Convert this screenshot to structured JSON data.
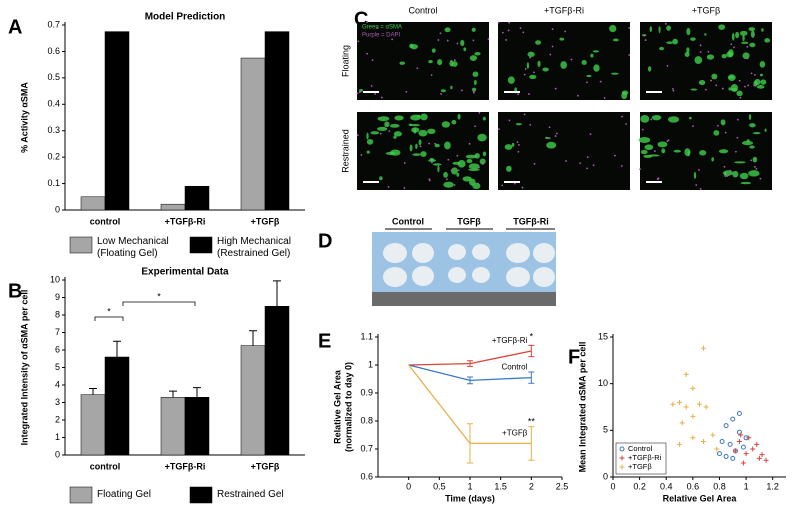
{
  "chart_data": [
    {
      "type": "bar",
      "panel": "A",
      "title": "Model Prediction",
      "ylabel": "% Activity αSMA",
      "categories": [
        "control",
        "+TGFβ-Ri",
        "+TGFβ"
      ],
      "series": [
        {
          "name": "Low Mechanical (Floating Gel)",
          "color": "#a6a6a6",
          "values": [
            0.05,
            0.022,
            0.575
          ]
        },
        {
          "name": "High Mechanical (Restrained Gel)",
          "color": "#000000",
          "values": [
            0.675,
            0.09,
            0.675
          ]
        }
      ],
      "ylim": [
        0,
        0.7
      ],
      "yticks": [
        0,
        0.1,
        0.2,
        0.3,
        0.4,
        0.5,
        0.6,
        0.7
      ]
    },
    {
      "type": "bar",
      "panel": "B",
      "title": "Experimental Data",
      "ylabel": "Integrated Intensity of αSMA per cell",
      "categories": [
        "control",
        "+TGFβ-Ri",
        "+TGFβ"
      ],
      "series": [
        {
          "name": "Floating Gel",
          "color": "#a6a6a6",
          "values": [
            3.45,
            3.3,
            6.25
          ],
          "errors": [
            0.35,
            0.35,
            0.85
          ]
        },
        {
          "name": "Restrained Gel",
          "color": "#000000",
          "values": [
            5.6,
            3.3,
            8.5
          ],
          "errors": [
            0.9,
            0.55,
            1.45
          ]
        }
      ],
      "annotations": [
        "*",
        "*"
      ],
      "ylim": [
        0,
        10
      ],
      "yticks": [
        0,
        1,
        2,
        3,
        4,
        5,
        6,
        7,
        8,
        9,
        10
      ]
    },
    {
      "type": "line",
      "panel": "E",
      "xlabel": "Time (days)",
      "ylabel": [
        "Relative Gel Area",
        "(normalized to day 0)"
      ],
      "x": [
        0,
        1,
        2
      ],
      "series": [
        {
          "name": "+TGFβ-Ri",
          "color": "#d9453a",
          "values": [
            1,
            1.005,
            1.05
          ],
          "errors": [
            0,
            0.01,
            0.02
          ]
        },
        {
          "name": "Control",
          "color": "#3a78c2",
          "values": [
            1,
            0.945,
            0.955
          ],
          "errors": [
            0,
            0.012,
            0.02
          ]
        },
        {
          "name": "+TGFβ",
          "color": "#e8b04a",
          "values": [
            1,
            0.72,
            0.72
          ],
          "errors": [
            0,
            0.07,
            0.06
          ]
        }
      ],
      "annotations": [
        "*",
        "**"
      ],
      "xlim": [
        -0.5,
        2.5
      ],
      "xticks": [
        0,
        0.5,
        1,
        1.5,
        2,
        2.5
      ],
      "ylim": [
        0.6,
        1.1
      ],
      "yticks": [
        0.6,
        0.7,
        0.8,
        0.9,
        1,
        1.1
      ]
    },
    {
      "type": "scatter",
      "panel": "F",
      "xlabel": "Relative Gel Area",
      "ylabel": "Mean Integrated αSMA per cell",
      "series": [
        {
          "name": "Control",
          "color": "#3a78c2",
          "marker": "o",
          "x": [
            0.85,
            0.9,
            0.95,
            0.88,
            0.92,
            0.8,
            0.85,
            0.98,
            1.0,
            0.9,
            0.95,
            0.82
          ],
          "values": [
            5.5,
            6.2,
            4.8,
            3.5,
            2.8,
            2.5,
            2.2,
            3.2,
            4.2,
            2.0,
            6.8,
            3.8
          ]
        },
        {
          "name": "+TGFβ-Ri",
          "color": "#d9453a",
          "marker": "+",
          "x": [
            0.95,
            1.0,
            1.05,
            1.1,
            1.15,
            0.98,
            1.02,
            0.92,
            1.08,
            0.96,
            1.12
          ],
          "values": [
            3.8,
            2.5,
            3.0,
            2.0,
            1.8,
            1.5,
            4.2,
            2.8,
            3.5,
            4.5,
            2.4
          ]
        },
        {
          "name": "+TGFβ",
          "color": "#e8b04a",
          "marker": "+",
          "x": [
            0.68,
            0.55,
            0.6,
            0.5,
            0.45,
            0.55,
            0.65,
            0.7,
            0.6,
            0.52,
            0.75,
            0.6,
            0.68,
            0.78,
            0.5
          ],
          "values": [
            13.8,
            11,
            9.5,
            8,
            7.8,
            7.5,
            7.8,
            7.5,
            6.5,
            5.8,
            4.5,
            4.2,
            3.8,
            3.0,
            3.5
          ]
        }
      ],
      "xlim": [
        0,
        1.3
      ],
      "xticks": [
        0,
        0.2,
        0.4,
        0.6,
        0.8,
        1,
        1.2
      ],
      "ylim": [
        0,
        15
      ],
      "yticks": [
        0,
        5,
        10,
        15
      ]
    }
  ],
  "panel_c": {
    "panel": "C",
    "columns": [
      "Control",
      "+TGFβ-Ri",
      "+TGFβ"
    ],
    "rows": [
      "Floating",
      "Restrained"
    ],
    "legend": [
      "Green = αSMA",
      "Purple = DAPI"
    ]
  },
  "panel_d": {
    "panel": "D",
    "labels": [
      "Control",
      "TGFβ",
      "TGFβ-Ri"
    ]
  }
}
